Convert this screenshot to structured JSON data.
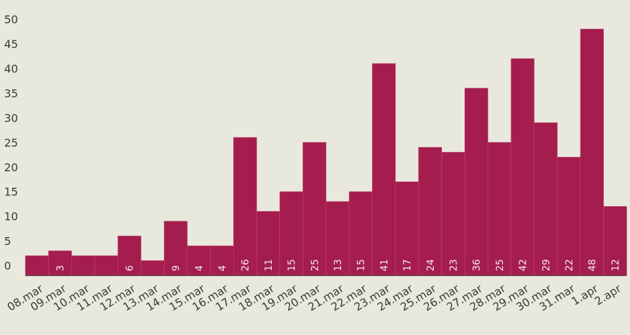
{
  "chart_data": {
    "type": "bar",
    "title": "",
    "xlabel": "",
    "ylabel": "",
    "categories": [
      "08.mar",
      "09.mar",
      "10.mar",
      "11.mar",
      "12.mar",
      "13.mar",
      "14.mar",
      "15.mar",
      "16.mar",
      "17.mar",
      "18.mar",
      "19.mar",
      "20.mar",
      "21.mar",
      "22.mar",
      "23.mar",
      "24.mar",
      "25.mar",
      "26.mar",
      "27.mar",
      "28.mar",
      "29.mar",
      "30.mar",
      "31.mar",
      "1.apr",
      "2.apr"
    ],
    "values": [
      2,
      3,
      2,
      2,
      6,
      1,
      9,
      4,
      4,
      26,
      11,
      15,
      25,
      13,
      15,
      41,
      17,
      24,
      23,
      36,
      25,
      42,
      29,
      22,
      48,
      12
    ],
    "data_labels": [
      "",
      "3",
      "",
      "",
      "6",
      "",
      "9",
      "4",
      "4",
      "26",
      "11",
      "15",
      "25",
      "13",
      "15",
      "41",
      "17",
      "24",
      "23",
      "36",
      "25",
      "42",
      "29",
      "22",
      "48",
      "12"
    ],
    "y_ticks": [
      "0",
      "5",
      "10",
      "15",
      "20",
      "25",
      "30",
      "35",
      "40",
      "45",
      "50"
    ],
    "ylim": [
      -2,
      50
    ],
    "grid": false,
    "legend": "none",
    "colors": {
      "bar": "#a51d4e",
      "background": "#e9e8dd",
      "axis": "#4a4a4a",
      "text": "#3a3a3a",
      "data_label": "#f4e9ee"
    }
  }
}
